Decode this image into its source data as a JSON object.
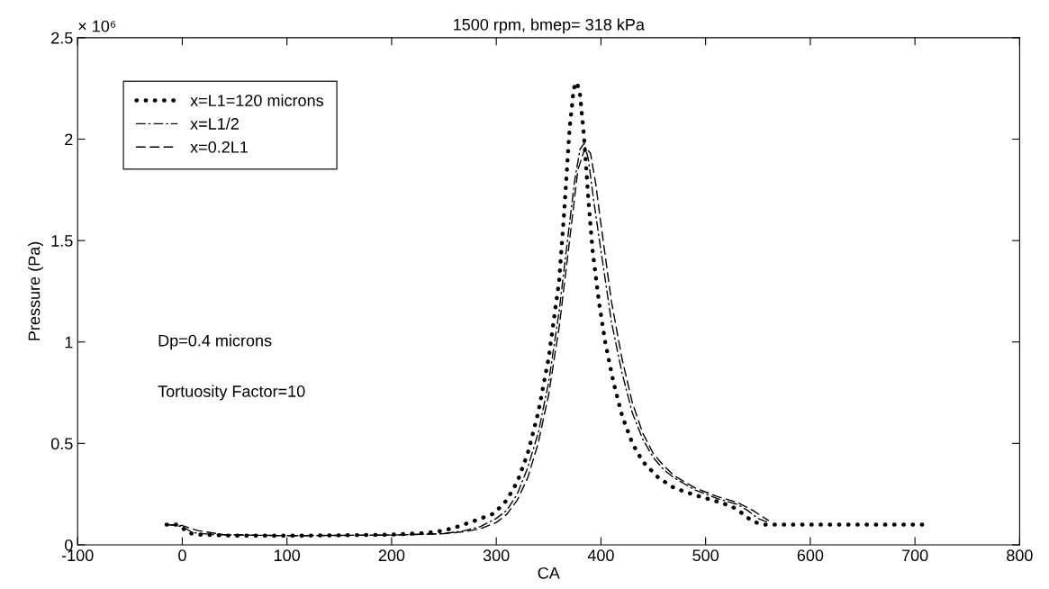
{
  "chart_data": {
    "type": "line",
    "title": "1500 rpm, bmep= 318 kPa",
    "xlabel": "CA",
    "ylabel": "Pressure (Pa)",
    "xlim": [
      -100,
      800
    ],
    "xticks": [
      -100,
      0,
      100,
      200,
      300,
      400,
      500,
      600,
      700,
      800
    ],
    "ylim": [
      0,
      2.5
    ],
    "yticks": [
      0,
      0.5,
      1,
      1.5,
      2,
      2.5
    ],
    "grid": false,
    "legend": "top left",
    "annotations": [
      "× 10⁶",
      "Dp=0.4 microns",
      "Tortuosity Factor=10"
    ],
    "series": [
      {
        "name": "x=L1=120 microns",
        "color": "#000000",
        "line_style": "dotted",
        "x": [
          -15,
          -5,
          0,
          5,
          15,
          50,
          100,
          150,
          200,
          232,
          250,
          265,
          280,
          298,
          310,
          320,
          330,
          340,
          350,
          360,
          365,
          370,
          374,
          377,
          380,
          384,
          388,
          392,
          398,
          404,
          412,
          420,
          430,
          440,
          455,
          470,
          490,
          510,
          525,
          535,
          545,
          555,
          600,
          650,
          707
        ],
        "values": [
          0.1,
          0.1,
          0.085,
          0.06,
          0.05,
          0.045,
          0.045,
          0.047,
          0.05,
          0.058,
          0.07,
          0.093,
          0.12,
          0.155,
          0.22,
          0.31,
          0.45,
          0.65,
          0.92,
          1.3,
          1.65,
          2.05,
          2.25,
          2.28,
          2.22,
          2.0,
          1.7,
          1.45,
          1.2,
          1.0,
          0.8,
          0.64,
          0.5,
          0.41,
          0.33,
          0.28,
          0.245,
          0.215,
          0.19,
          0.155,
          0.115,
          0.1,
          0.1,
          0.1,
          0.1
        ]
      },
      {
        "name": "x=L1/2",
        "color": "#000000",
        "line_style": "dashdot",
        "x": [
          -15,
          0,
          10,
          30,
          100,
          200,
          250,
          270,
          285,
          300,
          310,
          320,
          330,
          340,
          350,
          360,
          368,
          375,
          380,
          384,
          388,
          393,
          400,
          410,
          420,
          430,
          440,
          450,
          460,
          470,
          490,
          510,
          530,
          540,
          550,
          560
        ],
        "values": [
          0.1,
          0.09,
          0.06,
          0.05,
          0.045,
          0.048,
          0.055,
          0.07,
          0.09,
          0.13,
          0.17,
          0.25,
          0.38,
          0.55,
          0.8,
          1.15,
          1.5,
          1.8,
          1.95,
          1.98,
          1.9,
          1.7,
          1.45,
          1.1,
          0.85,
          0.65,
          0.52,
          0.43,
          0.37,
          0.33,
          0.27,
          0.23,
          0.2,
          0.17,
          0.13,
          0.11
        ]
      },
      {
        "name": "x=0.2L1",
        "color": "#000000",
        "line_style": "dashed",
        "x": [
          -15,
          0,
          15,
          40,
          100,
          200,
          250,
          270,
          285,
          300,
          310,
          320,
          330,
          340,
          350,
          360,
          370,
          378,
          385,
          390,
          395,
          400,
          410,
          420,
          430,
          440,
          450,
          460,
          470,
          490,
          510,
          530,
          545,
          560
        ],
        "values": [
          0.1,
          0.095,
          0.07,
          0.05,
          0.045,
          0.048,
          0.055,
          0.065,
          0.08,
          0.11,
          0.15,
          0.22,
          0.33,
          0.5,
          0.74,
          1.07,
          1.5,
          1.85,
          1.96,
          1.93,
          1.78,
          1.58,
          1.2,
          0.92,
          0.7,
          0.55,
          0.45,
          0.39,
          0.34,
          0.28,
          0.24,
          0.21,
          0.17,
          0.12
        ]
      }
    ]
  }
}
